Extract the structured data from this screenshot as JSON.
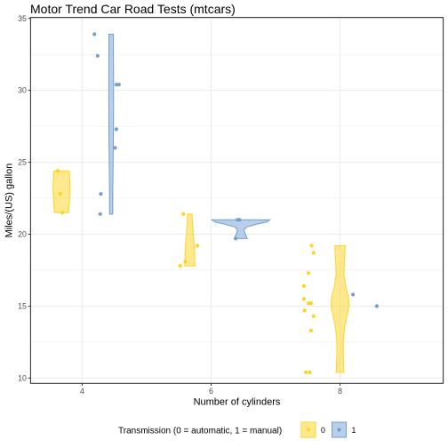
{
  "chart_data": {
    "type": "violin",
    "title": "Motor Trend Car Road Tests (mtcars)",
    "xlabel": "Number of cylinders",
    "ylabel": "Miles/(US) gallon",
    "x_categories": [
      "4",
      "6",
      "8"
    ],
    "xlim": [
      3.2,
      9.6
    ],
    "ylim": [
      9.63,
      35.07
    ],
    "y_ticks": [
      10,
      15,
      20,
      25,
      30,
      35
    ],
    "grid": true,
    "legend_placement": "bottom",
    "legend_title": "Transmission (0 = automatic, 1 = manual)",
    "series": [
      {
        "name": "0",
        "color": "#FFD320",
        "groups": [
          {
            "cyl": 4,
            "mpg": [
              24.4,
              22.8,
              21.5
            ]
          },
          {
            "cyl": 6,
            "mpg": [
              21.4,
              18.1,
              19.2,
              17.8
            ]
          },
          {
            "cyl": 8,
            "mpg": [
              18.7,
              14.3,
              16.4,
              17.3,
              15.2,
              10.4,
              10.4,
              14.7,
              15.5,
              15.2,
              13.3,
              19.2
            ]
          }
        ],
        "points": [
          {
            "x": 3.62,
            "y": 24.4
          },
          {
            "x": 3.66,
            "y": 22.8
          },
          {
            "x": 3.69,
            "y": 21.5
          },
          {
            "x": 5.57,
            "y": 21.4
          },
          {
            "x": 5.6,
            "y": 18.1
          },
          {
            "x": 5.52,
            "y": 17.8
          },
          {
            "x": 5.79,
            "y": 19.2
          },
          {
            "x": 7.59,
            "y": 18.7
          },
          {
            "x": 7.59,
            "y": 14.3
          },
          {
            "x": 7.44,
            "y": 16.4
          },
          {
            "x": 7.51,
            "y": 17.3
          },
          {
            "x": 7.51,
            "y": 15.2
          },
          {
            "x": 7.55,
            "y": 15.2
          },
          {
            "x": 7.47,
            "y": 10.4
          },
          {
            "x": 7.53,
            "y": 10.4
          },
          {
            "x": 7.45,
            "y": 14.7
          },
          {
            "x": 7.44,
            "y": 15.5
          },
          {
            "x": 7.55,
            "y": 13.3
          },
          {
            "x": 7.56,
            "y": 19.2
          }
        ]
      },
      {
        "name": "1",
        "color": "#729FCF",
        "groups": [
          {
            "cyl": 4,
            "mpg": [
              22.8,
              32.4,
              30.4,
              33.9,
              27.3,
              26.0,
              30.4,
              21.4
            ]
          },
          {
            "cyl": 6,
            "mpg": [
              21.0,
              21.0,
              19.7
            ]
          },
          {
            "cyl": 8,
            "mpg": [
              15.8,
              15.0
            ]
          }
        ],
        "points": [
          {
            "x": 4.29,
            "y": 22.8
          },
          {
            "x": 4.24,
            "y": 32.4
          },
          {
            "x": 4.53,
            "y": 30.4
          },
          {
            "x": 4.19,
            "y": 33.9
          },
          {
            "x": 4.53,
            "y": 27.3
          },
          {
            "x": 4.51,
            "y": 26.0
          },
          {
            "x": 4.57,
            "y": 30.4
          },
          {
            "x": 4.28,
            "y": 21.4
          },
          {
            "x": 6.41,
            "y": 21.0
          },
          {
            "x": 6.44,
            "y": 21.0
          },
          {
            "x": 6.38,
            "y": 19.7
          },
          {
            "x": 8.2,
            "y": 15.8
          },
          {
            "x": 8.57,
            "y": 15.0
          }
        ]
      }
    ],
    "violins": [
      {
        "series": "0",
        "cyl": 4,
        "center": 3.68,
        "profile": [
          [
            21.5,
            0.11
          ],
          [
            22.0,
            0.12
          ],
          [
            22.5,
            0.125
          ],
          [
            23.0,
            0.13
          ],
          [
            23.5,
            0.13
          ],
          [
            24.0,
            0.125
          ],
          [
            24.4,
            0.12
          ]
        ]
      },
      {
        "series": "1",
        "cyl": 4,
        "center": 4.45,
        "profile": [
          [
            21.4,
            0.025
          ],
          [
            23.0,
            0.025
          ],
          [
            25.0,
            0.03
          ],
          [
            27.0,
            0.035
          ],
          [
            29.0,
            0.037
          ],
          [
            31.0,
            0.037
          ],
          [
            33.0,
            0.035
          ],
          [
            33.9,
            0.035
          ]
        ]
      },
      {
        "series": "0",
        "cyl": 6,
        "center": 5.67,
        "profile": [
          [
            17.8,
            0.08
          ],
          [
            18.2,
            0.075
          ],
          [
            18.6,
            0.075
          ],
          [
            19.0,
            0.07
          ],
          [
            19.6,
            0.06
          ],
          [
            20.2,
            0.05
          ],
          [
            20.8,
            0.04
          ],
          [
            21.4,
            0.035
          ]
        ]
      },
      {
        "series": "1",
        "cyl": 6,
        "center": 6.46,
        "profile": [
          [
            19.7,
            0.1
          ],
          [
            20.0,
            0.07
          ],
          [
            20.3,
            0.05
          ],
          [
            20.5,
            0.09
          ],
          [
            20.7,
            0.25
          ],
          [
            20.85,
            0.4
          ],
          [
            21.0,
            0.45
          ]
        ]
      },
      {
        "series": "0",
        "cyl": 8,
        "center": 8.0,
        "profile": [
          [
            10.4,
            0.06
          ],
          [
            11.5,
            0.05
          ],
          [
            12.5,
            0.05
          ],
          [
            13.5,
            0.07
          ],
          [
            14.2,
            0.1
          ],
          [
            15.0,
            0.14
          ],
          [
            15.6,
            0.13
          ],
          [
            16.3,
            0.09
          ],
          [
            17.2,
            0.06
          ],
          [
            18.2,
            0.07
          ],
          [
            19.2,
            0.08
          ]
        ]
      }
    ]
  }
}
